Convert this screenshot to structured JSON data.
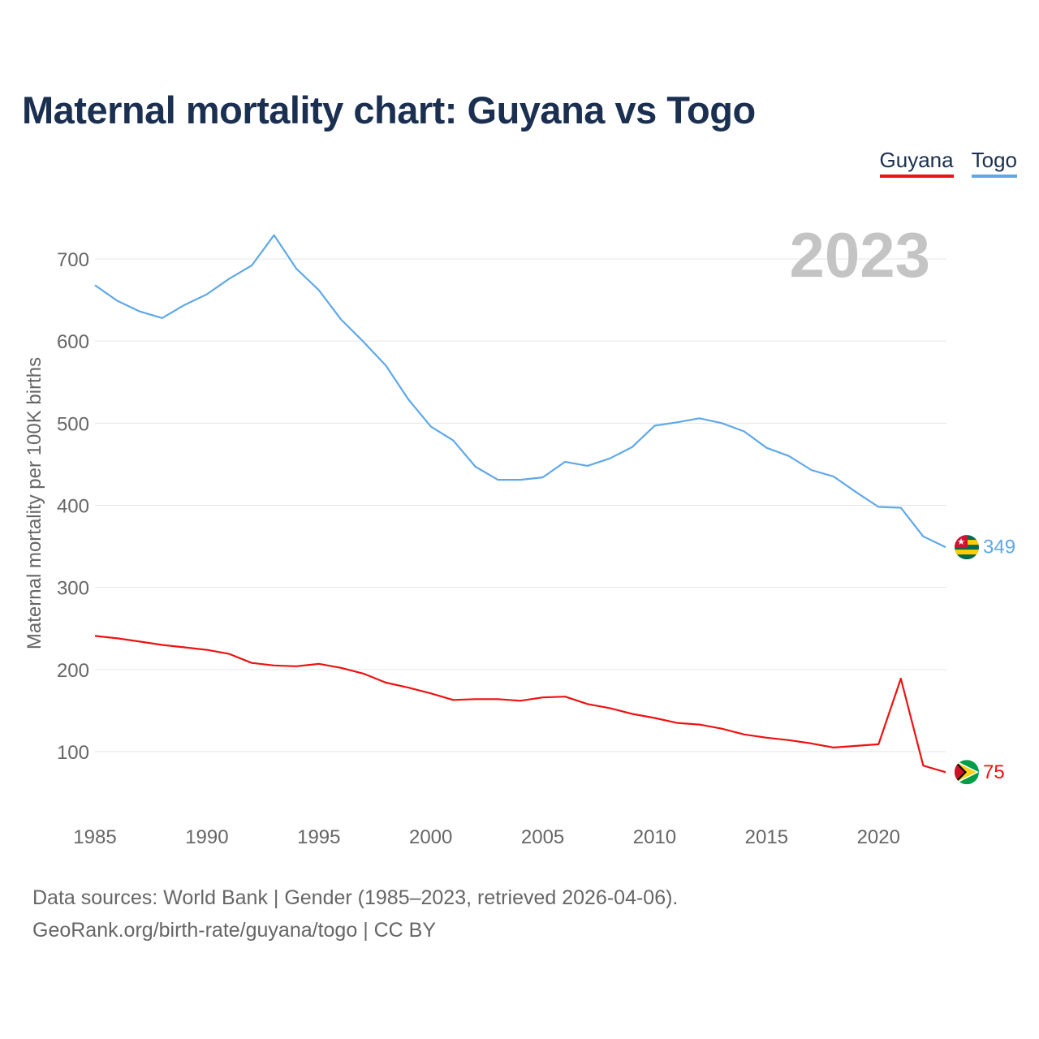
{
  "chart_data": {
    "type": "line",
    "title": "Maternal mortality chart: Guyana vs Togo",
    "ylabel": "Maternal mortality per 100K births",
    "xlabel": "",
    "year_label": "2023",
    "x": [
      1985,
      1986,
      1987,
      1988,
      1989,
      1990,
      1991,
      1992,
      1993,
      1994,
      1995,
      1996,
      1997,
      1998,
      1999,
      2000,
      2001,
      2002,
      2003,
      2004,
      2005,
      2006,
      2007,
      2008,
      2009,
      2010,
      2011,
      2012,
      2013,
      2014,
      2015,
      2016,
      2017,
      2018,
      2019,
      2020,
      2021,
      2022,
      2023
    ],
    "xticks": [
      1985,
      1990,
      1995,
      2000,
      2005,
      2010,
      2015,
      2020
    ],
    "yticks": [
      100,
      200,
      300,
      400,
      500,
      600,
      700
    ],
    "xlim": [
      1985,
      2023
    ],
    "ylim": [
      60,
      735
    ],
    "grid": true,
    "legend_position": "top-right",
    "series": [
      {
        "name": "Guyana",
        "color": "#ee1111",
        "end_label": "75",
        "values": [
          241,
          238,
          234,
          230,
          227,
          224,
          219,
          208,
          205,
          204,
          207,
          202,
          195,
          184,
          178,
          171,
          163,
          164,
          164,
          162,
          166,
          167,
          158,
          153,
          146,
          141,
          135,
          133,
          128,
          121,
          117,
          114,
          110,
          105,
          107,
          109,
          189,
          83,
          75
        ]
      },
      {
        "name": "Togo",
        "color": "#5fa8e8",
        "end_label": "349",
        "values": [
          668,
          649,
          636,
          628,
          644,
          657,
          676,
          692,
          729,
          688,
          662,
          626,
          599,
          570,
          529,
          496,
          479,
          447,
          431,
          431,
          434,
          453,
          448,
          457,
          471,
          497,
          501,
          506,
          500,
          490,
          470,
          460,
          443,
          435,
          416,
          398,
          397,
          362,
          349
        ]
      }
    ]
  },
  "legend": {
    "guyana": "Guyana",
    "togo": "Togo"
  },
  "source": {
    "line1": "Data sources: World Bank | Gender (1985–2023, retrieved 2026-04-06).",
    "line2": "GeoRank.org/birth-rate/guyana/togo | CC BY"
  }
}
